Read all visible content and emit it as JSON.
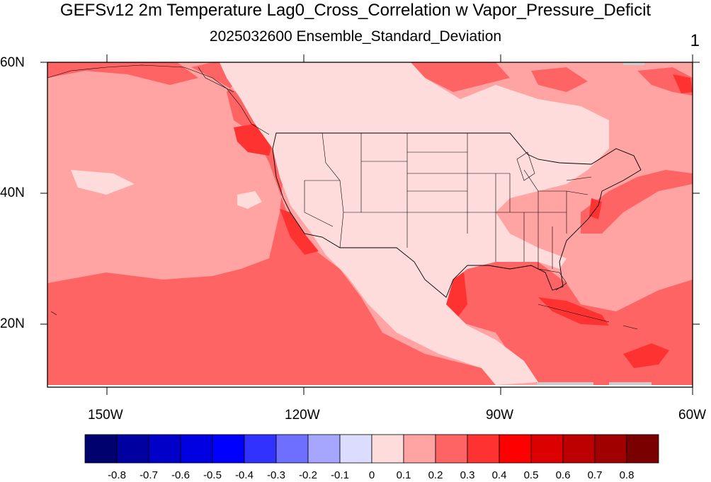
{
  "title": "GEFSv12 2m Temperature Lag0_Cross_Correlation w Vapor_Pressure_Deficit",
  "subtitle": "2025032600 Ensemble_Standard_Deviation",
  "panel_label": "1",
  "map": {
    "projection": "cylindrical-equidistant",
    "lon_range": [
      -160,
      -60
    ],
    "lat_range": [
      10,
      60
    ],
    "lat_labels": [
      "60N",
      "40N",
      "20N"
    ],
    "lon_labels": [
      "150W",
      "120W",
      "90W",
      "60W"
    ],
    "boundaries": [
      "coastlines",
      "us-states"
    ]
  },
  "colorbar": {
    "labels": [
      "-0.8",
      "-0.7",
      "-0.6",
      "-0.5",
      "-0.4",
      "-0.3",
      "-0.2",
      "-0.1",
      "0",
      "0.1",
      "0.2",
      "0.3",
      "0.4",
      "0.5",
      "0.6",
      "0.7",
      "0.8"
    ],
    "colors": [
      "#00006e",
      "#0000a0",
      "#0000c8",
      "#0000e0",
      "#0000ff",
      "#3232ff",
      "#6e6eff",
      "#a6a6ff",
      "#dcdcff",
      "#ffdcdc",
      "#ffa3a3",
      "#ff6464",
      "#ff3232",
      "#ff0000",
      "#dc0000",
      "#bc0000",
      "#a00000",
      "#7a0000"
    ]
  }
}
